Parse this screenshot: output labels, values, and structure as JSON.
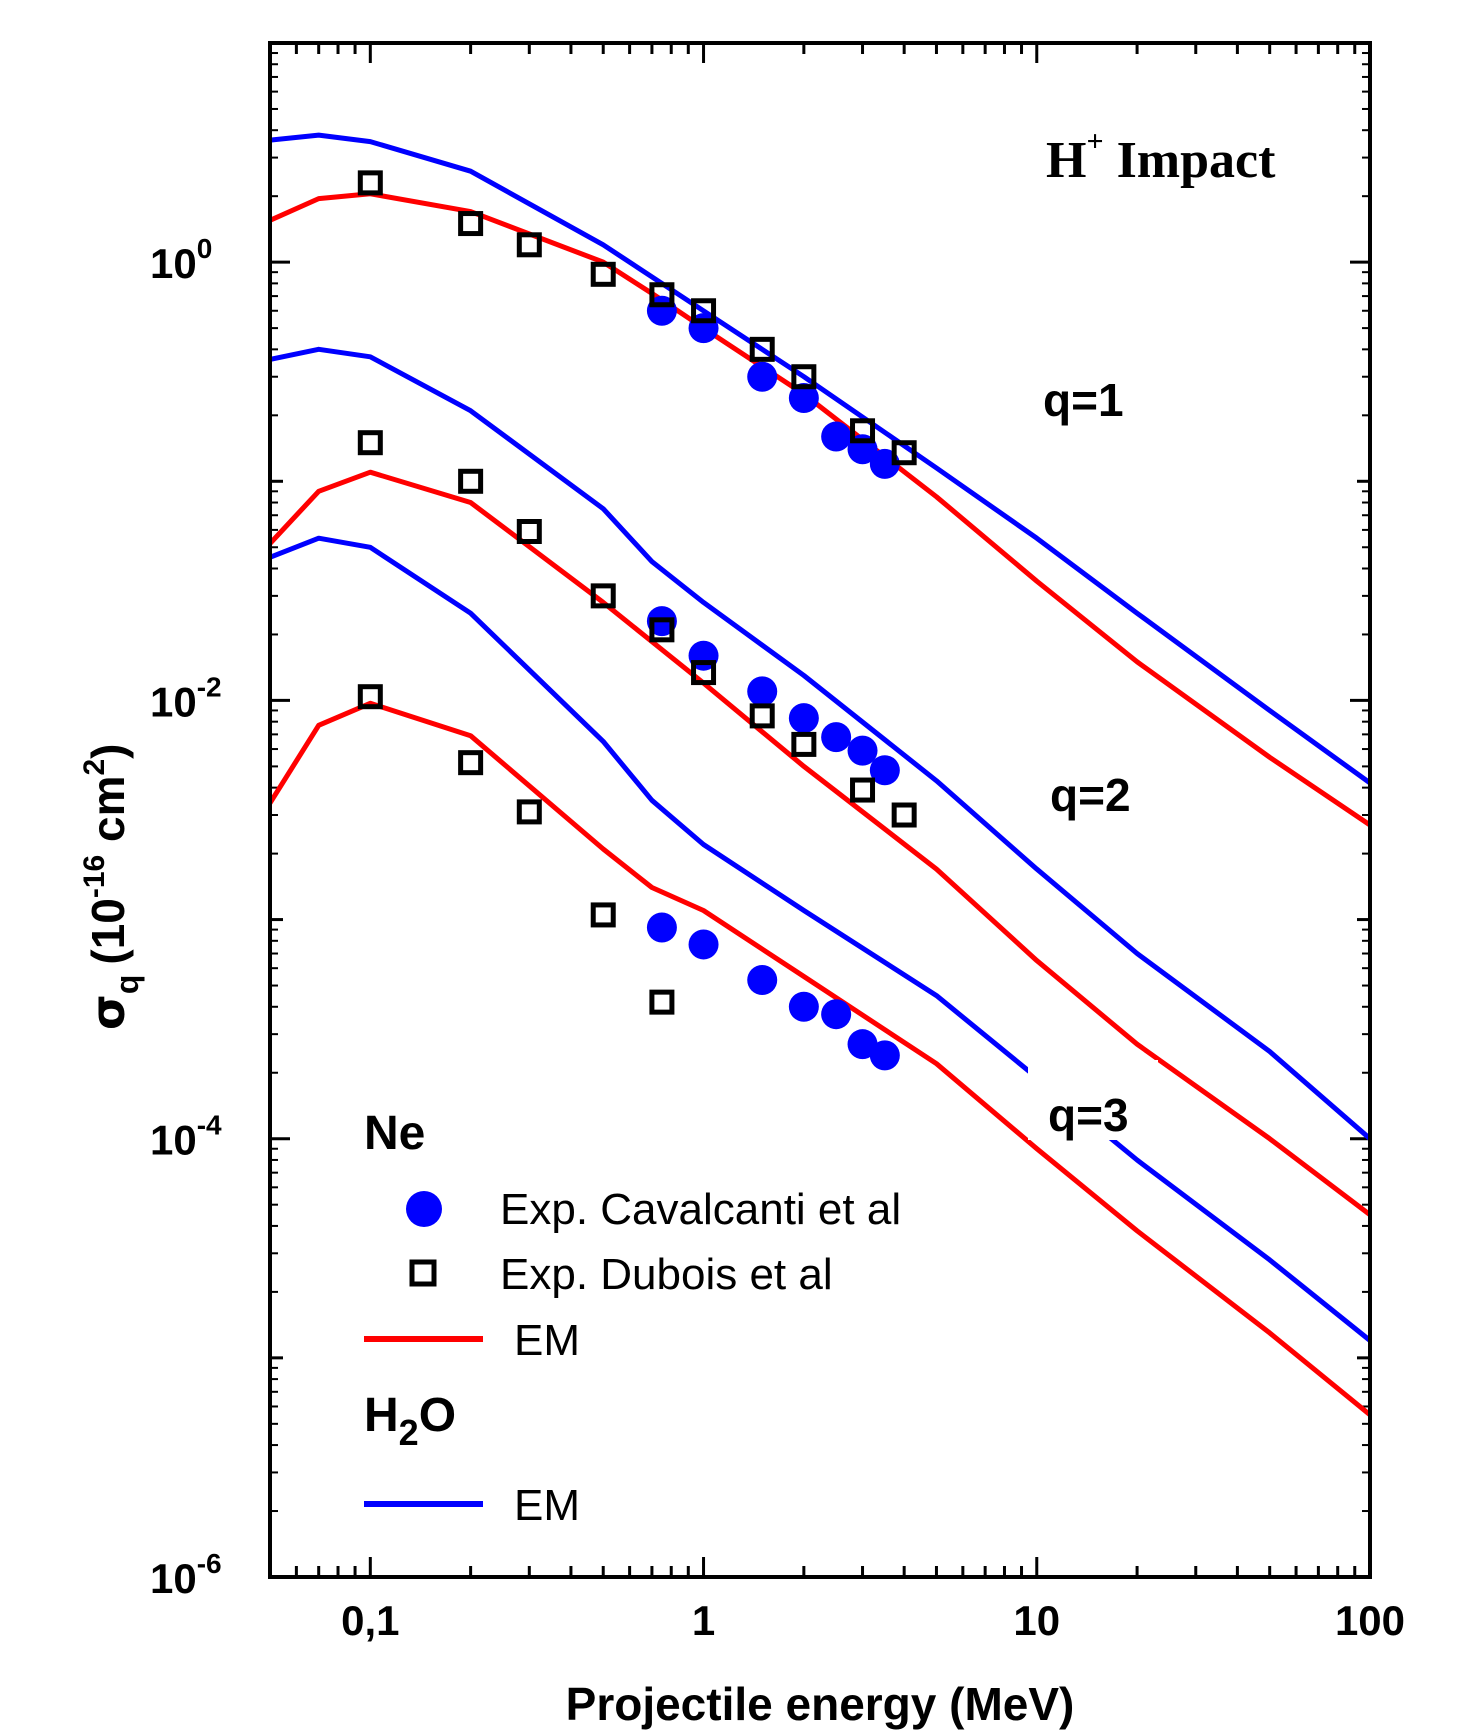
{
  "chart_data": {
    "type": "line",
    "xscale": "log",
    "yscale": "log",
    "xlim": [
      0.05,
      100
    ],
    "ylim": [
      1e-06,
      10
    ],
    "xlabel": "Projectile energy (MeV)",
    "ylabel_main": "σ",
    "ylabel_sub": "q",
    "ylabel_unit_pre": "(10",
    "ylabel_unit_exp": "-16",
    "ylabel_unit_mid": " cm",
    "ylabel_unit_exp2": "2",
    "ylabel_unit_post": ")",
    "x_ticks": [
      {
        "value": 0.1,
        "label": "0,1"
      },
      {
        "value": 1,
        "label": "1"
      },
      {
        "value": 10,
        "label": "10"
      },
      {
        "value": 100,
        "label": "100"
      }
    ],
    "y_ticks": [
      {
        "value": 1,
        "base": "10",
        "exp": "0"
      },
      {
        "value": 0.01,
        "base": "10",
        "exp": "-2"
      },
      {
        "value": 0.0001,
        "base": "10",
        "exp": "-4"
      },
      {
        "value": 1e-06,
        "base": "10",
        "exp": "-6"
      }
    ],
    "annotation": {
      "main": "H",
      "sup": "+",
      "rest": " Impact"
    },
    "curve_labels": [
      {
        "text": "q=1",
        "x": 12,
        "y": 0.4
      },
      {
        "text": "q=2",
        "x": 12,
        "y": 0.0043
      },
      {
        "text": "q=3",
        "x": 12,
        "y": 0.000115
      }
    ],
    "legend": {
      "ne_heading": "Ne",
      "cavalcanti_label": "Exp. Cavalcanti et al",
      "dubois_label": "Exp. Dubois et al",
      "ne_em_label": "EM",
      "h2o_heading_base": "H",
      "h2o_heading_sub": "2",
      "h2o_heading_rest": "O",
      "h2o_em_label": "EM"
    },
    "colors": {
      "ne_em": "#ff0000",
      "h2o_em": "#0000ff",
      "cavalcanti": "#0000ff",
      "dubois": "#000000"
    },
    "series": [
      {
        "group": "H2O EM",
        "q": 1,
        "x": [
          0.05,
          0.07,
          0.1,
          0.2,
          0.5,
          1,
          2,
          5,
          10,
          20,
          50,
          100
        ],
        "y": [
          3.6,
          3.8,
          3.55,
          2.6,
          1.2,
          0.6,
          0.3,
          0.115,
          0.055,
          0.025,
          0.009,
          0.0042
        ]
      },
      {
        "group": "Ne EM",
        "q": 1,
        "x": [
          0.05,
          0.07,
          0.1,
          0.2,
          0.5,
          0.7,
          1,
          2,
          5,
          10,
          20,
          50,
          100
        ],
        "y": [
          1.55,
          1.95,
          2.05,
          1.7,
          1.0,
          0.72,
          0.5,
          0.25,
          0.085,
          0.035,
          0.015,
          0.0055,
          0.0027
        ]
      },
      {
        "group": "H2O EM",
        "q": 2,
        "x": [
          0.05,
          0.07,
          0.1,
          0.2,
          0.5,
          0.7,
          1,
          2,
          5,
          10,
          20,
          50,
          100
        ],
        "y": [
          0.36,
          0.4,
          0.37,
          0.21,
          0.075,
          0.043,
          0.028,
          0.013,
          0.0043,
          0.0017,
          0.0007,
          0.00025,
          0.0001
        ]
      },
      {
        "group": "Ne EM",
        "q": 2,
        "x": [
          0.05,
          0.07,
          0.1,
          0.2,
          0.5,
          1,
          2,
          5,
          10,
          20,
          50,
          100
        ],
        "y": [
          0.052,
          0.09,
          0.11,
          0.08,
          0.028,
          0.012,
          0.005,
          0.0017,
          0.00065,
          0.00027,
          0.0001,
          4.5e-05
        ]
      },
      {
        "group": "H2O EM",
        "q": 3,
        "x": [
          0.05,
          0.07,
          0.1,
          0.2,
          0.5,
          0.7,
          1,
          2,
          5,
          10,
          20,
          50,
          100
        ],
        "y": [
          0.045,
          0.055,
          0.05,
          0.025,
          0.0065,
          0.0035,
          0.0022,
          0.0011,
          0.00045,
          0.00019,
          8e-05,
          2.8e-05,
          1.2e-05
        ]
      },
      {
        "group": "Ne EM",
        "q": 3,
        "x": [
          0.05,
          0.07,
          0.1,
          0.2,
          0.5,
          0.7,
          1,
          2,
          5,
          10,
          20,
          50,
          100
        ],
        "y": [
          0.0034,
          0.0077,
          0.0097,
          0.0069,
          0.0021,
          0.0014,
          0.0011,
          0.00055,
          0.00022,
          9e-05,
          3.8e-05,
          1.3e-05,
          5.5e-06
        ]
      }
    ],
    "cavalcanti": {
      "x": [
        0.75,
        1,
        1.5,
        2,
        2.5,
        3,
        3.5,
        0.75,
        1,
        1.5,
        2,
        2.5,
        3,
        3.5,
        0.75,
        1,
        1.5,
        2,
        2.5,
        3,
        3.5
      ],
      "y": [
        0.6,
        0.5,
        0.3,
        0.24,
        0.16,
        0.14,
        0.12,
        0.023,
        0.016,
        0.011,
        0.0083,
        0.0068,
        0.0059,
        0.0048,
        0.00092,
        0.00077,
        0.00053,
        0.0004,
        0.00037,
        0.00027,
        0.00024
      ]
    },
    "dubois": {
      "x": [
        0.1,
        0.2,
        0.3,
        0.5,
        0.75,
        1,
        1.5,
        2,
        3,
        4,
        0.1,
        0.2,
        0.3,
        0.5,
        0.75,
        1,
        1.5,
        2,
        3,
        4,
        0.1,
        0.2,
        0.3,
        0.5,
        0.75
      ],
      "y": [
        2.3,
        1.5,
        1.2,
        0.88,
        0.71,
        0.6,
        0.4,
        0.3,
        0.17,
        0.135,
        0.15,
        0.1,
        0.059,
        0.03,
        0.021,
        0.0134,
        0.0085,
        0.0063,
        0.0039,
        0.003,
        0.0104,
        0.0052,
        0.0031,
        0.00105,
        0.00042
      ]
    }
  }
}
